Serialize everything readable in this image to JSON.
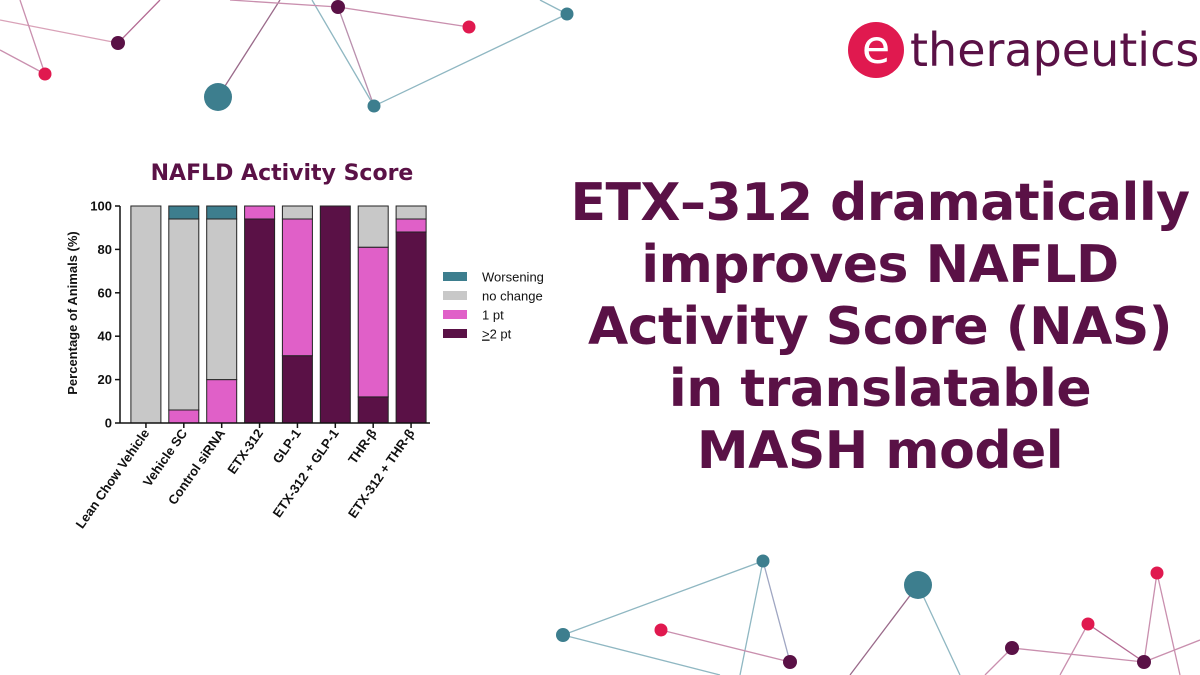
{
  "brand": {
    "logo_letter": "e",
    "logo_text": "therapeutics",
    "primary_color": "#5a1146",
    "accent_color": "#e0194f",
    "teal_color": "#3d7e8e"
  },
  "headline": {
    "lines": [
      "ETX–312 dramatically",
      "improves NAFLD",
      "Activity Score (NAS)",
      "in translatable",
      "MASH model"
    ]
  },
  "chart_data": {
    "type": "bar",
    "stacked": true,
    "title": "NAFLD Activity Score",
    "xlabel": "",
    "ylabel": "Percentage of Animals (%)",
    "ylim": [
      0,
      100
    ],
    "yticks": [
      0,
      20,
      40,
      60,
      80,
      100
    ],
    "legend_position": "right",
    "categories": [
      "Lean Chow Vehicle",
      "Vehicle SC",
      "Control siRNA",
      "ETX-312",
      "GLP-1",
      "ETX-312 + GLP-1",
      "THR-β",
      "ETX-312 + THR-β"
    ],
    "series": [
      {
        "name": "≥2 pt",
        "legend_label": "2 pt",
        "legend_prefix": "≥",
        "color": "#5a1146",
        "values": [
          0,
          0,
          0,
          94,
          31,
          100,
          12,
          88
        ]
      },
      {
        "name": "1 pt",
        "legend_label": "1 pt",
        "legend_prefix": "",
        "color": "#e060c8",
        "values": [
          0,
          6,
          20,
          6,
          63,
          0,
          69,
          6
        ]
      },
      {
        "name": "no change",
        "legend_label": "no change",
        "legend_prefix": "",
        "color": "#c8c8c8",
        "values": [
          100,
          88,
          74,
          0,
          6,
          0,
          19,
          6
        ]
      },
      {
        "name": "Worsening",
        "legend_label": "Worsening",
        "legend_prefix": "",
        "color": "#3d7e8e",
        "values": [
          0,
          6,
          6,
          0,
          0,
          0,
          0,
          0
        ]
      }
    ]
  }
}
